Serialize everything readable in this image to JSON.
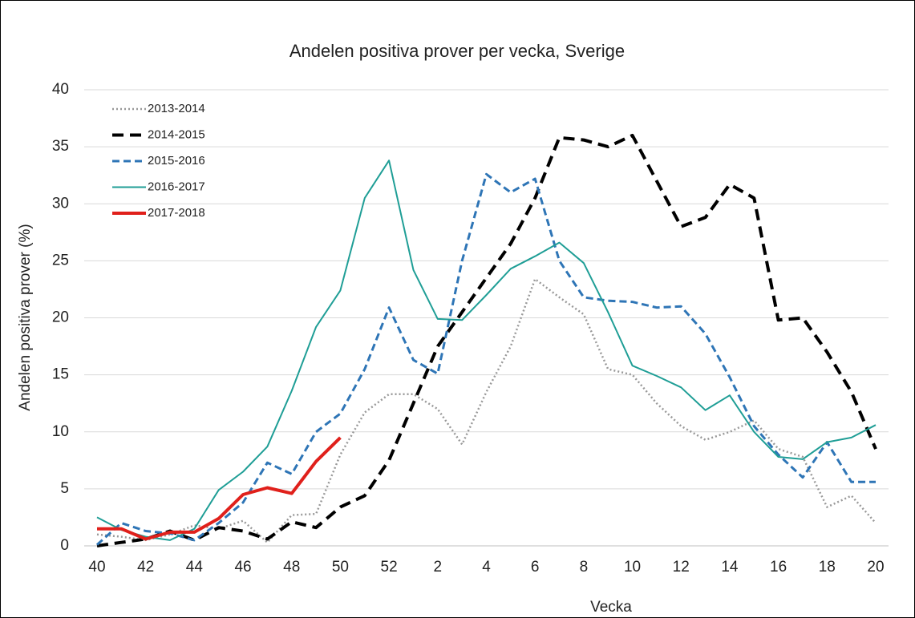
{
  "chart_data": {
    "type": "line",
    "title": "Andelen positiva prover per vecka, Sverige",
    "xlabel": "Vecka",
    "ylabel": "Andelen positiva prover (%)",
    "categories": [
      40,
      null,
      42,
      null,
      44,
      null,
      46,
      null,
      48,
      null,
      50,
      null,
      52,
      null,
      2,
      null,
      4,
      null,
      6,
      null,
      8,
      null,
      10,
      null,
      12,
      null,
      14,
      null,
      16,
      null,
      18,
      null,
      20
    ],
    "ylim": [
      0,
      40
    ],
    "yticks": [
      0,
      5,
      10,
      15,
      20,
      25,
      30,
      35,
      40
    ],
    "grid": true,
    "legend": "upper left",
    "series": [
      {
        "name": "2013-2014",
        "color": "#999999",
        "style": "dotted",
        "width": 2.5,
        "values": [
          1.0,
          0.8,
          0.5,
          1.0,
          1.8,
          1.5,
          2.2,
          0.3,
          2.7,
          2.8,
          8.0,
          11.7,
          13.3,
          13.3,
          12.0,
          8.9,
          13.5,
          17.5,
          23.4,
          21.8,
          20.3,
          15.5,
          15.0,
          12.5,
          10.5,
          9.3,
          10.0,
          11.0,
          8.5,
          7.8,
          3.4,
          4.4,
          2.0
        ]
      },
      {
        "name": "2014-2015",
        "color": "#000000",
        "style": "dashed",
        "width": 4,
        "values": [
          0.0,
          0.3,
          0.6,
          1.3,
          0.5,
          1.6,
          1.3,
          0.6,
          2.1,
          1.6,
          3.4,
          4.4,
          7.5,
          12.5,
          17.5,
          20.5,
          23.5,
          26.5,
          30.5,
          35.8,
          35.6,
          35.0,
          36.0,
          32.0,
          28.0,
          28.8,
          31.7,
          30.5,
          19.8,
          20.0,
          17.0,
          13.5,
          8.5
        ]
      },
      {
        "name": "2015-2016",
        "color": "#2e75b6",
        "style": "dashed",
        "width": 3,
        "values": [
          0.1,
          2.0,
          1.3,
          1.1,
          0.5,
          2.0,
          3.8,
          7.3,
          6.3,
          10.0,
          11.6,
          15.5,
          20.9,
          16.3,
          15.1,
          25.0,
          32.6,
          31.0,
          32.2,
          25.0,
          21.8,
          21.5,
          21.4,
          20.9,
          21.0,
          18.6,
          14.8,
          10.5,
          8.0,
          6.0,
          9.1,
          5.6,
          5.6
        ]
      },
      {
        "name": "2016-2017",
        "color": "#1f9e96",
        "style": "solid",
        "width": 2,
        "values": [
          2.5,
          1.4,
          0.8,
          0.5,
          1.5,
          4.9,
          6.5,
          8.7,
          13.6,
          19.2,
          22.4,
          30.5,
          33.8,
          24.2,
          19.9,
          19.8,
          22.0,
          24.3,
          25.4,
          26.6,
          24.8,
          20.5,
          15.8,
          14.9,
          13.9,
          11.9,
          13.2,
          10.0,
          7.8,
          7.6,
          9.1,
          9.5,
          10.6
        ]
      },
      {
        "name": "2017-2018",
        "color": "#e0201b",
        "style": "solid",
        "width": 4,
        "values": [
          1.5,
          1.5,
          0.6,
          1.2,
          1.2,
          2.4,
          4.5,
          5.1,
          4.6,
          7.4,
          9.5,
          null,
          null,
          null,
          null,
          null,
          null,
          null,
          null,
          null,
          null,
          null,
          null,
          null,
          null,
          null,
          null,
          null,
          null,
          null,
          null,
          null,
          null
        ]
      }
    ]
  }
}
